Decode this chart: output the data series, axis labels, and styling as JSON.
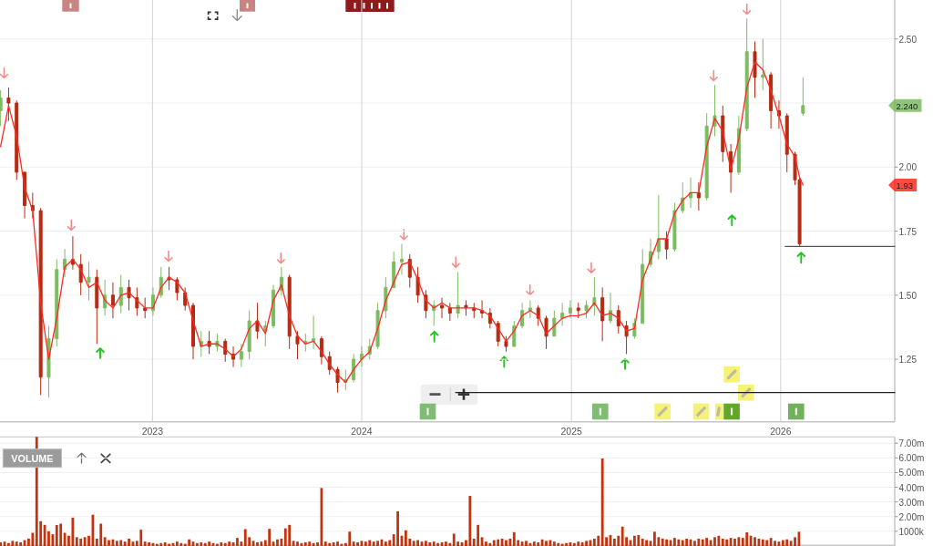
{
  "chart_data": [
    {
      "type": "candlestick",
      "x": [
        "2022-04-11",
        "2022-04-25",
        "2022-05-09",
        "2022-05-23",
        "2022-06-06",
        "2022-06-20",
        "2022-07-04",
        "2022-07-18",
        "2022-08-01",
        "2022-08-15",
        "2022-08-29",
        "2022-09-12",
        "2022-09-26",
        "2022-10-10",
        "2022-10-24",
        "2022-11-07",
        "2022-11-21",
        "2022-12-05",
        "2022-12-19",
        "2023-01-02",
        "2023-01-16",
        "2023-01-30",
        "2023-02-13",
        "2023-02-27",
        "2023-03-13",
        "2023-03-27",
        "2023-04-10",
        "2023-04-24",
        "2023-05-08",
        "2023-05-22",
        "2023-06-05",
        "2023-06-19",
        "2023-07-03",
        "2023-07-17",
        "2023-07-31",
        "2023-08-14",
        "2023-08-28",
        "2023-09-11",
        "2023-09-25",
        "2023-10-09",
        "2023-10-23",
        "2023-11-06",
        "2023-11-20",
        "2023-12-04",
        "2023-12-18",
        "2024-01-01",
        "2024-01-15",
        "2024-01-29",
        "2024-02-12",
        "2024-02-26",
        "2024-03-11",
        "2024-03-25",
        "2024-04-08",
        "2024-04-22",
        "2024-05-06",
        "2024-05-20",
        "2024-06-03",
        "2024-06-17",
        "2024-07-01",
        "2024-07-15",
        "2024-07-29",
        "2024-08-12",
        "2024-08-26",
        "2024-09-09",
        "2024-09-23",
        "2024-10-07",
        "2024-10-21",
        "2024-11-04",
        "2024-11-18",
        "2024-12-02",
        "2024-12-16",
        "2024-12-30",
        "2025-01-13",
        "2025-01-27",
        "2025-02-10",
        "2025-02-24",
        "2025-03-10",
        "2025-03-24",
        "2025-04-07",
        "2025-04-21",
        "2025-05-05",
        "2025-05-19",
        "2025-06-02",
        "2025-06-16",
        "2025-06-30",
        "2025-07-14",
        "2025-07-28",
        "2025-08-11",
        "2025-08-25",
        "2025-09-08",
        "2025-09-22",
        "2025-10-06",
        "2025-10-20",
        "2025-11-03",
        "2025-11-17",
        "2025-12-01",
        "2025-12-15",
        "2025-12-29",
        "2026-01-12",
        "2026-01-26",
        "2026-02-03",
        "2026-02-09"
      ],
      "ohlc": [
        [
          2.22,
          2.3,
          2.16,
          2.27
        ],
        [
          2.27,
          2.31,
          2.18,
          2.25
        ],
        [
          2.25,
          2.26,
          1.95,
          1.98
        ],
        [
          1.98,
          1.98,
          1.8,
          1.85
        ],
        [
          1.85,
          1.9,
          1.8,
          1.83
        ],
        [
          1.83,
          1.84,
          1.11,
          1.18
        ],
        [
          1.18,
          1.38,
          1.1,
          1.33
        ],
        [
          1.33,
          1.64,
          1.3,
          1.6
        ],
        [
          1.6,
          1.68,
          1.57,
          1.64
        ],
        [
          1.64,
          1.73,
          1.6,
          1.62
        ],
        [
          1.62,
          1.66,
          1.5,
          1.55
        ],
        [
          1.55,
          1.63,
          1.48,
          1.57
        ],
        [
          1.57,
          1.6,
          1.31,
          1.45
        ],
        [
          1.45,
          1.56,
          1.42,
          1.5
        ],
        [
          1.5,
          1.55,
          1.41,
          1.46
        ],
        [
          1.46,
          1.58,
          1.43,
          1.53
        ],
        [
          1.53,
          1.56,
          1.44,
          1.49
        ],
        [
          1.49,
          1.53,
          1.42,
          1.45
        ],
        [
          1.45,
          1.49,
          1.41,
          1.44
        ],
        [
          1.44,
          1.53,
          1.42,
          1.5
        ],
        [
          1.5,
          1.61,
          1.49,
          1.57
        ],
        [
          1.57,
          1.61,
          1.52,
          1.56
        ],
        [
          1.56,
          1.57,
          1.48,
          1.51
        ],
        [
          1.51,
          1.53,
          1.44,
          1.46
        ],
        [
          1.46,
          1.47,
          1.25,
          1.3
        ],
        [
          1.3,
          1.36,
          1.26,
          1.32
        ],
        [
          1.32,
          1.36,
          1.27,
          1.3
        ],
        [
          1.3,
          1.35,
          1.28,
          1.32
        ],
        [
          1.32,
          1.33,
          1.24,
          1.27
        ],
        [
          1.27,
          1.3,
          1.22,
          1.25
        ],
        [
          1.25,
          1.31,
          1.22,
          1.28
        ],
        [
          1.28,
          1.44,
          1.25,
          1.4
        ],
        [
          1.4,
          1.47,
          1.33,
          1.36
        ],
        [
          1.36,
          1.4,
          1.3,
          1.38
        ],
        [
          1.38,
          1.54,
          1.37,
          1.52
        ],
        [
          1.52,
          1.61,
          1.5,
          1.57
        ],
        [
          1.57,
          1.58,
          1.29,
          1.34
        ],
        [
          1.34,
          1.36,
          1.25,
          1.31
        ],
        [
          1.31,
          1.35,
          1.28,
          1.32
        ],
        [
          1.32,
          1.42,
          1.29,
          1.33
        ],
        [
          1.33,
          1.34,
          1.23,
          1.26
        ],
        [
          1.26,
          1.28,
          1.19,
          1.21
        ],
        [
          1.21,
          1.22,
          1.12,
          1.16
        ],
        [
          1.16,
          1.21,
          1.13,
          1.17
        ],
        [
          1.17,
          1.27,
          1.16,
          1.25
        ],
        [
          1.25,
          1.3,
          1.22,
          1.27
        ],
        [
          1.27,
          1.33,
          1.25,
          1.3
        ],
        [
          1.3,
          1.47,
          1.29,
          1.44
        ],
        [
          1.44,
          1.57,
          1.41,
          1.53
        ],
        [
          1.53,
          1.67,
          1.53,
          1.63
        ],
        [
          1.63,
          1.7,
          1.58,
          1.64
        ],
        [
          1.64,
          1.66,
          1.53,
          1.57
        ],
        [
          1.57,
          1.61,
          1.47,
          1.5
        ],
        [
          1.5,
          1.52,
          1.41,
          1.44
        ],
        [
          1.44,
          1.48,
          1.38,
          1.46
        ],
        [
          1.46,
          1.49,
          1.41,
          1.45
        ],
        [
          1.45,
          1.47,
          1.4,
          1.43
        ],
        [
          1.43,
          1.59,
          1.41,
          1.46
        ],
        [
          1.46,
          1.48,
          1.42,
          1.45
        ],
        [
          1.45,
          1.47,
          1.41,
          1.44
        ],
        [
          1.44,
          1.48,
          1.41,
          1.43
        ],
        [
          1.43,
          1.45,
          1.37,
          1.39
        ],
        [
          1.39,
          1.4,
          1.3,
          1.32
        ],
        [
          1.32,
          1.34,
          1.28,
          1.3
        ],
        [
          1.3,
          1.4,
          1.3,
          1.38
        ],
        [
          1.38,
          1.47,
          1.37,
          1.44
        ],
        [
          1.44,
          1.48,
          1.41,
          1.45
        ],
        [
          1.45,
          1.46,
          1.38,
          1.41
        ],
        [
          1.41,
          1.42,
          1.29,
          1.34
        ],
        [
          1.34,
          1.44,
          1.34,
          1.41
        ],
        [
          1.41,
          1.47,
          1.38,
          1.43
        ],
        [
          1.43,
          1.48,
          1.41,
          1.45
        ],
        [
          1.45,
          1.47,
          1.41,
          1.44
        ],
        [
          1.44,
          1.48,
          1.41,
          1.46
        ],
        [
          1.46,
          1.57,
          1.42,
          1.49
        ],
        [
          1.49,
          1.53,
          1.32,
          1.4
        ],
        [
          1.4,
          1.51,
          1.39,
          1.44
        ],
        [
          1.44,
          1.46,
          1.35,
          1.38
        ],
        [
          1.38,
          1.4,
          1.27,
          1.34
        ],
        [
          1.34,
          1.41,
          1.33,
          1.39
        ],
        [
          1.39,
          1.68,
          1.39,
          1.62
        ],
        [
          1.62,
          1.72,
          1.61,
          1.67
        ],
        [
          1.67,
          1.89,
          1.64,
          1.72
        ],
        [
          1.72,
          1.75,
          1.64,
          1.68
        ],
        [
          1.68,
          1.86,
          1.67,
          1.83
        ],
        [
          1.83,
          1.94,
          1.82,
          1.88
        ],
        [
          1.88,
          1.96,
          1.84,
          1.9
        ],
        [
          1.9,
          1.94,
          1.83,
          1.88
        ],
        [
          1.88,
          2.21,
          1.87,
          2.16
        ],
        [
          2.16,
          2.32,
          2.12,
          2.2
        ],
        [
          2.2,
          2.24,
          2.02,
          2.06
        ],
        [
          2.06,
          2.09,
          1.9,
          1.98
        ],
        [
          1.98,
          2.2,
          1.97,
          2.15
        ],
        [
          2.15,
          2.58,
          2.14,
          2.45
        ],
        [
          2.45,
          2.49,
          2.27,
          2.35
        ],
        [
          2.35,
          2.5,
          2.3,
          2.36
        ],
        [
          2.36,
          2.37,
          2.15,
          2.22
        ],
        [
          2.22,
          2.26,
          2.15,
          2.2
        ],
        [
          2.2,
          2.21,
          1.98,
          2.05
        ],
        [
          2.05,
          2.06,
          1.93,
          1.95
        ],
        [
          1.95,
          1.96,
          1.69,
          1.7
        ],
        [
          2.21,
          2.35,
          2.2,
          2.24
        ]
      ],
      "colors": [
        "#7dbb62",
        "#b52b12",
        "#b52b12",
        "#b52b12",
        "#b52b12",
        "#b52b12",
        "#7dbb62",
        "#7dbb62",
        "#7dbb62",
        "#b52b12",
        "#b52b12",
        "#7dbb62",
        "#b52b12",
        "#7dbb62",
        "#b52b12",
        "#7dbb62",
        "#b52b12",
        "#b52b12",
        "#b52b12",
        "#7dbb62",
        "#7dbb62",
        "#b52b12",
        "#b52b12",
        "#b52b12",
        "#b52b12",
        "#7dbb62",
        "#b52b12",
        "#7dbb62",
        "#b52b12",
        "#b52b12",
        "#7dbb62",
        "#7dbb62",
        "#b52b12",
        "#7dbb62",
        "#7dbb62",
        "#7dbb62",
        "#b52b12",
        "#b52b12",
        "#7dbb62",
        "#7dbb62",
        "#b52b12",
        "#b52b12",
        "#b52b12",
        "#7dbb62",
        "#7dbb62",
        "#7dbb62",
        "#7dbb62",
        "#7dbb62",
        "#7dbb62",
        "#7dbb62",
        "#7dbb62",
        "#b52b12",
        "#b52b12",
        "#b52b12",
        "#7dbb62",
        "#b52b12",
        "#b52b12",
        "#7dbb62",
        "#b52b12",
        "#b52b12",
        "#b52b12",
        "#b52b12",
        "#b52b12",
        "#b52b12",
        "#7dbb62",
        "#7dbb62",
        "#7dbb62",
        "#b52b12",
        "#b52b12",
        "#7dbb62",
        "#7dbb62",
        "#7dbb62",
        "#b52b12",
        "#7dbb62",
        "#7dbb62",
        "#b52b12",
        "#7dbb62",
        "#b52b12",
        "#b52b12",
        "#7dbb62",
        "#7dbb62",
        "#7dbb62",
        "#7dbb62",
        "#b52b12",
        "#7dbb62",
        "#7dbb62",
        "#7dbb62",
        "#b52b12",
        "#7dbb62",
        "#7dbb62",
        "#b52b12",
        "#b52b12",
        "#7dbb62",
        "#7dbb62",
        "#b52b12",
        "#7dbb62",
        "#b52b12",
        "#b52b12",
        "#b52b12",
        "#b52b12",
        "#b52b12",
        "#7dbb62"
      ],
      "series": [
        {
          "type": "line",
          "color": "#ff2a1f",
          "values": [
            2.08,
            2.24,
            2.12,
            1.92,
            1.83,
            1.47,
            1.25,
            1.41,
            1.61,
            1.64,
            1.6,
            1.53,
            1.55,
            1.48,
            1.45,
            1.5,
            1.51,
            1.48,
            1.45,
            1.45,
            1.53,
            1.57,
            1.55,
            1.51,
            1.4,
            1.3,
            1.31,
            1.31,
            1.29,
            1.26,
            1.29,
            1.37,
            1.4,
            1.35,
            1.48,
            1.54,
            1.42,
            1.34,
            1.31,
            1.32,
            1.28,
            1.23,
            1.19,
            1.16,
            1.21,
            1.25,
            1.28,
            1.37,
            1.48,
            1.55,
            1.62,
            1.63,
            1.56,
            1.48,
            1.45,
            1.47,
            1.45,
            1.45,
            1.45,
            1.45,
            1.44,
            1.42,
            1.37,
            1.32,
            1.36,
            1.42,
            1.44,
            1.42,
            1.35,
            1.38,
            1.41,
            1.42,
            1.42,
            1.43,
            1.47,
            1.42,
            1.43,
            1.41,
            1.36,
            1.37,
            1.56,
            1.64,
            1.72,
            1.72,
            1.82,
            1.87,
            1.9,
            1.9,
            2.08,
            2.19,
            2.14,
            1.99,
            2.11,
            2.31,
            2.41,
            2.38,
            2.3,
            2.2,
            2.09,
            2.04,
            1.96,
            1.93
          ]
        },
        {
          "type": "line",
          "color": "#555555",
          "x": [
            "2026-01-09",
            "2026-07-19"
          ],
          "values": [
            1.69,
            1.69
          ]
        },
        {
          "type": "line",
          "color": "#222222",
          "x": [
            "2024-06-13",
            "2026-07-19"
          ],
          "values": [
            1.12,
            1.12
          ]
        }
      ],
      "xlim": [
        "2022-04-10",
        "2026-07-19"
      ],
      "xticks": [
        "2023",
        "2024",
        "2025",
        "2026"
      ],
      "ylim": [
        1.006,
        2.652
      ],
      "yticks": [
        1.25,
        {
          "value": 1.5,
          "label": "1.50"
        },
        1.75,
        {
          "value": 2,
          "label": "2.00"
        },
        {
          "value": 2.25,
          "label": null
        },
        {
          "value": 2.5,
          "label": "2.50"
        }
      ],
      "grid": true,
      "annotations": [
        "2.240",
        "1.93"
      ]
    },
    {
      "type": "bar",
      "title": "VOLUME",
      "x": [
        "2022-04-11",
        "2022-04-18",
        "2022-04-25",
        "2022-05-02",
        "2022-05-09",
        "2022-05-16",
        "2022-05-23",
        "2022-05-30",
        "2022-06-06",
        "2022-06-13",
        "2022-06-20",
        "2022-06-27",
        "2022-07-04",
        "2022-07-11",
        "2022-07-18",
        "2022-07-25",
        "2022-08-01",
        "2022-08-08",
        "2022-08-15",
        "2022-08-22",
        "2022-08-29",
        "2022-09-05",
        "2022-09-12",
        "2022-09-19",
        "2022-09-26",
        "2022-10-03",
        "2022-10-10",
        "2022-10-17",
        "2022-10-24",
        "2022-10-31",
        "2022-11-07",
        "2022-11-14",
        "2022-11-21",
        "2022-11-28",
        "2022-12-05",
        "2022-12-12",
        "2022-12-19",
        "2022-12-26",
        "2023-01-02",
        "2023-01-09",
        "2023-01-16",
        "2023-01-23",
        "2023-01-30",
        "2023-02-06",
        "2023-02-13",
        "2023-02-20",
        "2023-02-27",
        "2023-03-06",
        "2023-03-13",
        "2023-03-20",
        "2023-03-27",
        "2023-04-03",
        "2023-04-10",
        "2023-04-17",
        "2023-04-24",
        "2023-05-01",
        "2023-05-08",
        "2023-05-15",
        "2023-05-22",
        "2023-05-29",
        "2023-06-05",
        "2023-06-12",
        "2023-06-19",
        "2023-06-26",
        "2023-07-03",
        "2023-07-10",
        "2023-07-17",
        "2023-07-24",
        "2023-07-31",
        "2023-08-07",
        "2023-08-14",
        "2023-08-21",
        "2023-08-28",
        "2023-09-04",
        "2023-09-11",
        "2023-09-18",
        "2023-09-25",
        "2023-10-02",
        "2023-10-09",
        "2023-10-16",
        "2023-10-23",
        "2023-10-30",
        "2023-11-06",
        "2023-11-13",
        "2023-11-20",
        "2023-11-27",
        "2023-12-04",
        "2023-12-11",
        "2023-12-18",
        "2023-12-25",
        "2024-01-01",
        "2024-01-08",
        "2024-01-15",
        "2024-01-22",
        "2024-01-29",
        "2024-02-05",
        "2024-02-12",
        "2024-02-19",
        "2024-02-26",
        "2024-03-04",
        "2024-03-11",
        "2024-03-18",
        "2024-03-25",
        "2024-04-01",
        "2024-04-08",
        "2024-04-15",
        "2024-04-22",
        "2024-04-29",
        "2024-05-06",
        "2024-05-13",
        "2024-05-20",
        "2024-05-27",
        "2024-06-03",
        "2024-06-10",
        "2024-06-17",
        "2024-06-24",
        "2024-07-01",
        "2024-07-08",
        "2024-07-15",
        "2024-07-22",
        "2024-07-29",
        "2024-08-05",
        "2024-08-12",
        "2024-08-19",
        "2024-08-26",
        "2024-09-02",
        "2024-09-09",
        "2024-09-16",
        "2024-09-23",
        "2024-09-30",
        "2024-10-07",
        "2024-10-14",
        "2024-10-21",
        "2024-10-28",
        "2024-11-04",
        "2024-11-11",
        "2024-11-18",
        "2024-11-25",
        "2024-12-02",
        "2024-12-09",
        "2024-12-16",
        "2024-12-23",
        "2024-12-30",
        "2025-01-06",
        "2025-01-13",
        "2025-01-20",
        "2025-01-27",
        "2025-02-03",
        "2025-02-10",
        "2025-02-17",
        "2025-02-24",
        "2025-03-03",
        "2025-03-10",
        "2025-03-17",
        "2025-03-24",
        "2025-03-31",
        "2025-04-07",
        "2025-04-14",
        "2025-04-21",
        "2025-04-28",
        "2025-05-05",
        "2025-05-12",
        "2025-05-19",
        "2025-05-26",
        "2025-06-02",
        "2025-06-09",
        "2025-06-16",
        "2025-06-23",
        "2025-06-30",
        "2025-07-07",
        "2025-07-14",
        "2025-07-21",
        "2025-07-28",
        "2025-08-04",
        "2025-08-11",
        "2025-08-18",
        "2025-08-25",
        "2025-09-01",
        "2025-09-08",
        "2025-09-15",
        "2025-09-22",
        "2025-09-29",
        "2025-10-06",
        "2025-10-13",
        "2025-10-20",
        "2025-10-27",
        "2025-11-03",
        "2025-11-10",
        "2025-11-17",
        "2025-11-24",
        "2025-12-01",
        "2025-12-08",
        "2025-12-15",
        "2025-12-22",
        "2025-12-29",
        "2026-01-05",
        "2026-01-12",
        "2026-01-19",
        "2026-01-26",
        "2026-02-02"
      ],
      "values": [
        250000,
        300000,
        200000,
        350000,
        300000,
        250000,
        400000,
        500000,
        900000,
        7430000,
        1690000,
        1440000,
        1000000,
        800000,
        1430000,
        1520000,
        900000,
        700000,
        1930000,
        600000,
        500000,
        600000,
        700000,
        2130000,
        500000,
        1520000,
        600000,
        400000,
        450000,
        350000,
        400000,
        300000,
        500000,
        300000,
        350000,
        1110000,
        300000,
        250000,
        200000,
        150000,
        200000,
        250000,
        150000,
        200000,
        300000,
        200000,
        150000,
        450000,
        300000,
        200000,
        250000,
        200000,
        300000,
        200000,
        150000,
        250000,
        200000,
        300000,
        250000,
        550000,
        300000,
        1150000,
        600000,
        350000,
        250000,
        300000,
        400000,
        1170000,
        300000,
        450000,
        500000,
        1200000,
        1440000,
        350000,
        300000,
        200000,
        250000,
        300000,
        200000,
        250000,
        3950000,
        300000,
        200000,
        250000,
        300000,
        150000,
        200000,
        980000,
        300000,
        250000,
        350000,
        300000,
        400000,
        300000,
        350000,
        450000,
        300000,
        400000,
        800000,
        2360000,
        700000,
        1070000,
        500000,
        350000,
        400000,
        300000,
        350000,
        250000,
        300000,
        200000,
        250000,
        300000,
        200000,
        840000,
        300000,
        250000,
        400000,
        3410000,
        500000,
        1440000,
        600000,
        300000,
        200000,
        400000,
        450000,
        500000,
        400000,
        500000,
        940000,
        400000,
        300000,
        350000,
        200000,
        300000,
        250000,
        450000,
        350000,
        400000,
        300000,
        200000,
        150000,
        200000,
        250000,
        200000,
        300000,
        250000,
        350000,
        400000,
        500000,
        700000,
        5960000,
        600000,
        750000,
        500000,
        700000,
        1320000,
        600000,
        400000,
        700000,
        750000,
        500000,
        400000,
        350000,
        970000,
        600000,
        500000,
        450000,
        400000,
        550000,
        450000,
        400000,
        500000,
        450000,
        350000,
        500000,
        450000,
        550000,
        400000,
        600000,
        700000,
        500000,
        450000,
        550000,
        500000,
        600000,
        550000,
        930000,
        700000,
        600000,
        500000,
        450000,
        400000,
        550000,
        350000,
        300000,
        400000,
        450000,
        350000,
        600000,
        970000
      ],
      "color": "#c1340f",
      "xlim": [
        "2022-04-10",
        "2026-07-19"
      ],
      "ylim": [
        0,
        7430000
      ],
      "yticks": [
        {
          "value": 1000000,
          "label": "1000k"
        },
        {
          "value": 2000000,
          "label": "2.00m"
        },
        {
          "value": 3000000,
          "label": "3.00m"
        },
        {
          "value": 4000000,
          "label": "4.00m"
        },
        {
          "value": 5000000,
          "label": "5.00m"
        },
        {
          "value": 6000000,
          "label": "6.00m"
        },
        {
          "value": 7000000,
          "label": "7.00m"
        }
      ],
      "grid": "y",
      "tick_labels": "y"
    }
  ]
}
